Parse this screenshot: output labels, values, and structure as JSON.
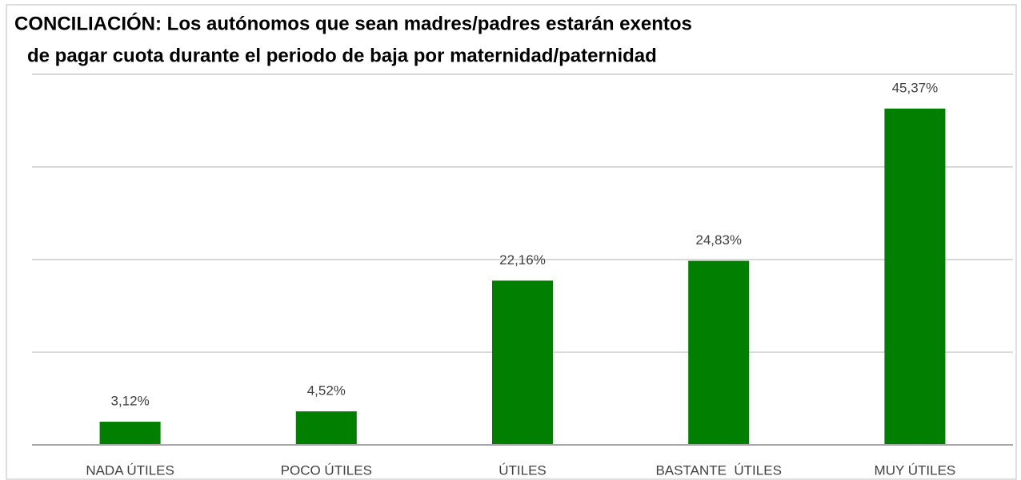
{
  "chart_data": {
    "type": "bar",
    "title": [
      "CONCILIACIÓN: Los autónomos que sean madres/padres estarán exentos",
      "de pagar cuota durante el periodo de baja por maternidad/paternidad"
    ],
    "categories": [
      "NADA ÚTILES",
      "POCO ÚTILES",
      "ÚTILES",
      "BASTANTE  ÚTILES",
      "MUY ÚTILES"
    ],
    "values": [
      3.12,
      4.52,
      22.16,
      24.83,
      45.37
    ],
    "value_labels": [
      "3,12%",
      "4,52%",
      "22,16%",
      "24,83%",
      "45,37%"
    ],
    "color": "#007f00",
    "ylim": [
      0,
      50
    ],
    "yticks": [
      0,
      12.5,
      25,
      37.5,
      50
    ],
    "grid": true
  }
}
